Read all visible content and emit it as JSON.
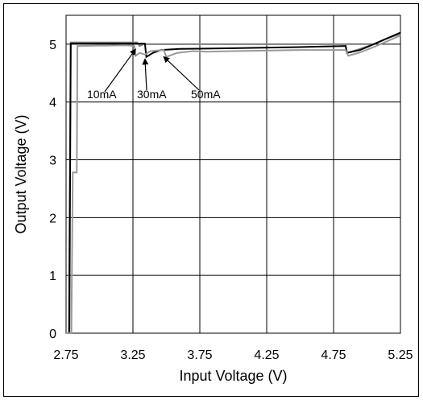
{
  "chart_data": {
    "type": "line",
    "title": "",
    "xlabel": "Input Voltage (V)",
    "ylabel": "Output Voltage (V)",
    "xlim": [
      2.75,
      5.25
    ],
    "ylim": [
      0,
      5.5
    ],
    "x_ticks": [
      "2.75",
      "3.25",
      "3.75",
      "4.25",
      "4.75",
      "5.25"
    ],
    "y_ticks": [
      "0",
      "1",
      "2",
      "3",
      "4",
      "5"
    ],
    "grid": true,
    "series": [
      {
        "name": "10mA",
        "color": "#7f7f7f",
        "points": [
          [
            2.75,
            0
          ],
          [
            2.77,
            0
          ],
          [
            2.785,
            5.03
          ],
          [
            3.28,
            5.03
          ],
          [
            3.3,
            4.97
          ],
          [
            3.33,
            5.0
          ],
          [
            3.38,
            5.0
          ],
          [
            4.84,
            5.0
          ],
          [
            4.85,
            4.85
          ],
          [
            4.95,
            4.92
          ],
          [
            5.05,
            5.0
          ],
          [
            5.15,
            5.1
          ],
          [
            5.25,
            5.18
          ]
        ]
      },
      {
        "name": "30mA",
        "color": "#000000",
        "points": [
          [
            2.75,
            0
          ],
          [
            2.775,
            0
          ],
          [
            2.785,
            5.01
          ],
          [
            3.34,
            5.01
          ],
          [
            3.35,
            4.78
          ],
          [
            3.4,
            4.85
          ],
          [
            3.46,
            4.9
          ],
          [
            3.6,
            4.92
          ],
          [
            4.0,
            4.93
          ],
          [
            4.5,
            4.95
          ],
          [
            4.84,
            4.97
          ],
          [
            4.85,
            4.85
          ],
          [
            4.95,
            4.9
          ],
          [
            5.05,
            5.0
          ],
          [
            5.15,
            5.1
          ],
          [
            5.25,
            5.2
          ]
        ]
      },
      {
        "name": "50mA",
        "color": "#999999",
        "points": [
          [
            2.75,
            0
          ],
          [
            2.79,
            0
          ],
          [
            2.8,
            2.78
          ],
          [
            2.83,
            2.78
          ],
          [
            2.835,
            4.97
          ],
          [
            3.2,
            4.98
          ],
          [
            3.26,
            4.97
          ],
          [
            3.27,
            4.8
          ],
          [
            3.3,
            4.85
          ],
          [
            3.34,
            4.82
          ],
          [
            3.38,
            4.88
          ],
          [
            3.48,
            4.9
          ],
          [
            3.5,
            4.78
          ],
          [
            3.58,
            4.85
          ],
          [
            3.7,
            4.88
          ],
          [
            3.8,
            4.87
          ],
          [
            4.0,
            4.88
          ],
          [
            4.5,
            4.9
          ],
          [
            4.84,
            4.9
          ],
          [
            4.86,
            4.8
          ],
          [
            4.95,
            4.86
          ],
          [
            5.05,
            4.95
          ],
          [
            5.15,
            5.05
          ],
          [
            5.25,
            5.15
          ]
        ]
      }
    ],
    "annotations": [
      {
        "text": "10mA",
        "target": [
          3.27,
          4.97
        ]
      },
      {
        "text": "30mA",
        "target": [
          3.34,
          4.8
        ]
      },
      {
        "text": "50mA",
        "target": [
          3.48,
          4.84
        ]
      }
    ]
  }
}
